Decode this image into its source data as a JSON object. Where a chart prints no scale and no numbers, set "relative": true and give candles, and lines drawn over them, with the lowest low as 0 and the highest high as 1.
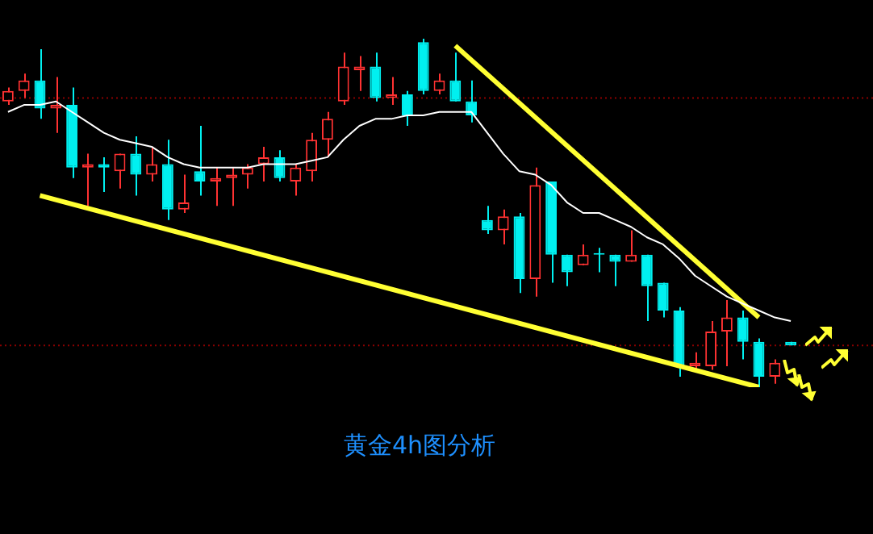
{
  "chart_data": {
    "type": "candlestick",
    "relative": true,
    "legend": false,
    "tick_labels": false,
    "categories": [
      null,
      null,
      null,
      null,
      null,
      null,
      null,
      null,
      null,
      null,
      null,
      null,
      null,
      null,
      null,
      null,
      null,
      null,
      null,
      null,
      null,
      null,
      null,
      null,
      null,
      null,
      null,
      null,
      null,
      null,
      null,
      null,
      null,
      null,
      null,
      null,
      null,
      null,
      null,
      null,
      null,
      null,
      null,
      null,
      null,
      null,
      null,
      null,
      null,
      null
    ],
    "ohlc": [
      [
        0.82,
        0.86,
        0.81,
        0.85
      ],
      [
        0.85,
        0.9,
        0.83,
        0.88
      ],
      [
        0.88,
        0.97,
        0.77,
        0.8
      ],
      [
        0.8,
        0.89,
        0.73,
        0.81
      ],
      [
        0.81,
        0.86,
        0.6,
        0.63
      ],
      [
        0.63,
        0.67,
        0.52,
        0.64
      ],
      [
        0.64,
        0.66,
        0.56,
        0.63
      ],
      [
        0.62,
        0.67,
        0.57,
        0.67
      ],
      [
        0.67,
        0.72,
        0.55,
        0.61
      ],
      [
        0.61,
        0.69,
        0.59,
        0.64
      ],
      [
        0.64,
        0.71,
        0.48,
        0.51
      ],
      [
        0.51,
        0.61,
        0.5,
        0.53
      ],
      [
        0.62,
        0.75,
        0.55,
        0.59
      ],
      [
        0.59,
        0.63,
        0.52,
        0.6
      ],
      [
        0.6,
        0.63,
        0.52,
        0.61
      ],
      [
        0.61,
        0.64,
        0.57,
        0.63
      ],
      [
        0.64,
        0.69,
        0.59,
        0.66
      ],
      [
        0.66,
        0.68,
        0.59,
        0.6
      ],
      [
        0.59,
        0.64,
        0.55,
        0.63
      ],
      [
        0.62,
        0.73,
        0.59,
        0.71
      ],
      [
        0.71,
        0.79,
        0.66,
        0.77
      ],
      [
        0.82,
        0.96,
        0.81,
        0.92
      ],
      [
        0.91,
        0.95,
        0.85,
        0.92
      ],
      [
        0.92,
        0.96,
        0.82,
        0.83
      ],
      [
        0.83,
        0.89,
        0.81,
        0.84
      ],
      [
        0.84,
        0.85,
        0.75,
        0.78
      ],
      [
        0.99,
        1,
        0.84,
        0.85
      ],
      [
        0.85,
        0.9,
        0.84,
        0.88
      ],
      [
        0.88,
        0.96,
        0.82,
        0.82
      ],
      [
        0.82,
        0.88,
        0.76,
        0.78
      ],
      [
        0.48,
        0.52,
        0.44,
        0.45
      ],
      [
        0.45,
        0.51,
        0.41,
        0.49
      ],
      [
        0.49,
        0.5,
        0.27,
        0.31
      ],
      [
        0.31,
        0.63,
        0.26,
        0.58
      ],
      [
        0.59,
        0.59,
        0.3,
        0.38
      ],
      [
        0.38,
        0.38,
        0.29,
        0.33
      ],
      [
        0.35,
        0.41,
        0.35,
        0.38
      ],
      [
        0.38,
        0.4,
        0.33,
        0.38
      ],
      [
        0.38,
        0.38,
        0.29,
        0.36
      ],
      [
        0.36,
        0.45,
        0.36,
        0.38
      ],
      [
        0.38,
        0.38,
        0.19,
        0.29
      ],
      [
        0.3,
        0.3,
        0.2,
        0.22
      ],
      [
        0.22,
        0.23,
        0.03,
        0.06
      ],
      [
        0.06,
        0.1,
        0.05,
        0.07
      ],
      [
        0.06,
        0.19,
        0.05,
        0.16
      ],
      [
        0.16,
        0.25,
        0.06,
        0.2
      ],
      [
        0.2,
        0.22,
        0.08,
        0.13
      ],
      [
        0.13,
        0.14,
        0,
        0.03
      ],
      [
        0.03,
        0.08,
        0.01,
        0.07
      ],
      [
        0.13,
        0.13,
        0.12,
        0.12
      ]
    ],
    "colors": [
      "#ff3232",
      "#ff3232",
      "#00f0f0",
      "#ff3232",
      "#00f0f0",
      "#ff3232",
      "#00f0f0",
      "#ff3232",
      "#00f0f0",
      "#ff3232",
      "#00f0f0",
      "#ff3232",
      "#00f0f0",
      "#ff3232",
      "#ff3232",
      "#ff3232",
      "#ff3232",
      "#00f0f0",
      "#ff3232",
      "#ff3232",
      "#ff3232",
      "#ff3232",
      "#ff3232",
      "#00f0f0",
      "#ff3232",
      "#00f0f0",
      "#00f0f0",
      "#ff3232",
      "#00f0f0",
      "#00f0f0",
      "#00f0f0",
      "#ff3232",
      "#00f0f0",
      "#ff3232",
      "#00f0f0",
      "#00f0f0",
      "#ff3232",
      "#00f0f0",
      "#00f0f0",
      "#ff3232",
      "#00f0f0",
      "#00f0f0",
      "#00f0f0",
      "#ff3232",
      "#ff3232",
      "#ff3232",
      "#00f0f0",
      "#00f0f0",
      "#ff3232",
      "#00f0f0"
    ],
    "series": [
      {
        "type": "line",
        "color": "#ffffff",
        "values": [
          0.79,
          0.81,
          0.81,
          0.82,
          0.79,
          0.76,
          0.73,
          0.71,
          0.7,
          0.69,
          0.66,
          0.64,
          0.63,
          0.63,
          0.63,
          0.63,
          0.64,
          0.64,
          0.64,
          0.65,
          0.66,
          0.71,
          0.75,
          0.77,
          0.77,
          0.78,
          0.78,
          0.79,
          0.79,
          0.79,
          0.73,
          0.67,
          0.62,
          0.61,
          0.58,
          0.53,
          0.5,
          0.5,
          0.48,
          0.46,
          0.43,
          0.41,
          0.37,
          0.32,
          0.29,
          0.26,
          0.24,
          0.22,
          0.2,
          0.19
        ]
      },
      {
        "type": "line",
        "color": "#ffff33",
        "values": [
          null,
          null,
          0.55,
          null,
          null,
          null,
          null,
          null,
          null,
          null,
          null,
          null,
          null,
          null,
          null,
          null,
          null,
          null,
          null,
          null,
          null,
          null,
          null,
          null,
          null,
          null,
          null,
          null,
          null,
          null,
          null,
          null,
          null,
          null,
          null,
          null,
          null,
          null,
          null,
          null,
          null,
          null,
          null,
          null,
          null,
          null,
          null,
          0,
          null,
          null
        ]
      },
      {
        "type": "line",
        "color": "#ffff33",
        "values": [
          null,
          null,
          null,
          null,
          null,
          null,
          null,
          null,
          null,
          null,
          null,
          null,
          null,
          null,
          null,
          null,
          null,
          null,
          null,
          null,
          null,
          null,
          null,
          null,
          null,
          null,
          null,
          null,
          0.98,
          null,
          null,
          null,
          null,
          null,
          null,
          null,
          null,
          null,
          null,
          null,
          null,
          null,
          null,
          null,
          null,
          null,
          null,
          0.2,
          null,
          null
        ]
      }
    ],
    "ref_lines": [
      {
        "axis": "y",
        "value": 0.83,
        "color": "#8b0000",
        "line_style": "dotted"
      },
      {
        "axis": "y",
        "value": 0.12,
        "color": "#8b0000",
        "line_style": "dotted"
      }
    ],
    "annotations": [
      "黄金4h图分析"
    ]
  }
}
